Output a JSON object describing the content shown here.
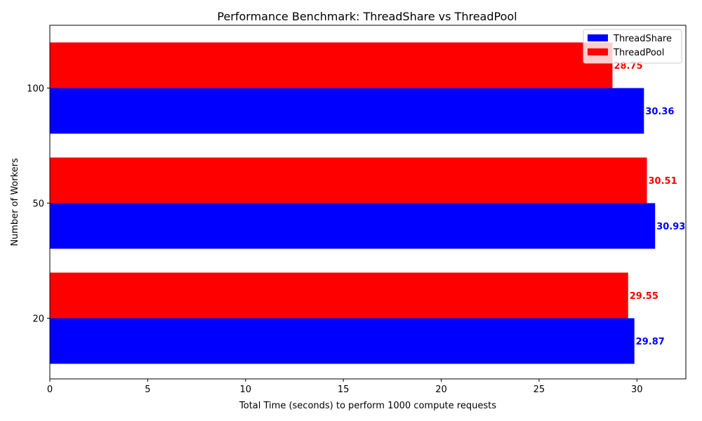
{
  "chart_data": {
    "type": "bar",
    "orientation": "horizontal",
    "title": "Performance Benchmark: ThreadShare vs ThreadPool",
    "xlabel": "Total Time (seconds) to perform 1000 compute requests",
    "ylabel": "Number of Workers",
    "categories": [
      "20",
      "50",
      "100"
    ],
    "series": [
      {
        "name": "ThreadShare",
        "color": "#0000ff",
        "values": [
          29.87,
          30.93,
          30.36
        ],
        "labels": [
          "29.87",
          "30.93",
          "30.36"
        ]
      },
      {
        "name": "ThreadPool",
        "color": "#ff0000",
        "values": [
          29.55,
          30.51,
          28.75
        ],
        "labels": [
          "29.55",
          "30.51",
          "28.75"
        ]
      }
    ],
    "xlim": [
      0,
      32.5
    ],
    "xticks": [
      0,
      5,
      10,
      15,
      20,
      25,
      30
    ],
    "xtick_labels": [
      "0",
      "5",
      "10",
      "15",
      "20",
      "25",
      "30"
    ],
    "grid": false,
    "legend_position": "top-right"
  }
}
